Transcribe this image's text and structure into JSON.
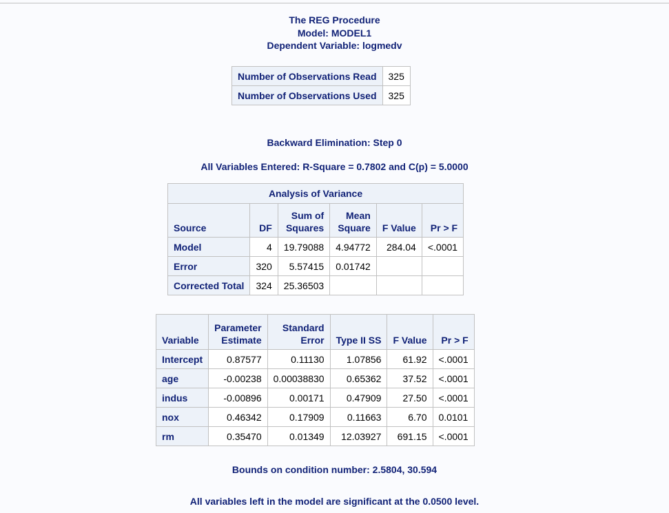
{
  "header": {
    "line1": "The REG Procedure",
    "line2": "Model: MODEL1",
    "line3": "Dependent Variable: logmedv"
  },
  "observations": {
    "rows": [
      {
        "label": "Number of Observations Read",
        "value": "325"
      },
      {
        "label": "Number of Observations Used",
        "value": "325"
      }
    ]
  },
  "step_title": "Backward Elimination: Step 0",
  "entered_summary": "All Variables Entered: R-Square = 0.7802 and C(p) = 5.0000",
  "anova": {
    "caption": "Analysis of Variance",
    "headers": {
      "source": "Source",
      "df": "DF",
      "ss_line1": "Sum of",
      "ss_line2": "Squares",
      "ms_line1": "Mean",
      "ms_line2": "Square",
      "f": "F Value",
      "p": "Pr > F"
    },
    "rows": [
      {
        "source": "Model",
        "df": "4",
        "ss": "19.79088",
        "ms": "4.94772",
        "f": "284.04",
        "p": "<.0001"
      },
      {
        "source": "Error",
        "df": "320",
        "ss": "5.57415",
        "ms": "0.01742",
        "f": "",
        "p": ""
      },
      {
        "source": "Corrected Total",
        "df": "324",
        "ss": "25.36503",
        "ms": "",
        "f": "",
        "p": ""
      }
    ]
  },
  "params": {
    "headers": {
      "variable": "Variable",
      "est_line1": "Parameter",
      "est_line2": "Estimate",
      "se_line1": "Standard",
      "se_line2": "Error",
      "ss": "Type II SS",
      "f": "F Value",
      "p": "Pr > F"
    },
    "rows": [
      {
        "variable": "Intercept",
        "est": "0.87577",
        "se": "0.11130",
        "ss": "1.07856",
        "f": "61.92",
        "p": "<.0001"
      },
      {
        "variable": "age",
        "est": "-0.00238",
        "se": "0.00038830",
        "ss": "0.65362",
        "f": "37.52",
        "p": "<.0001"
      },
      {
        "variable": "indus",
        "est": "-0.00896",
        "se": "0.00171",
        "ss": "0.47909",
        "f": "27.50",
        "p": "<.0001"
      },
      {
        "variable": "nox",
        "est": "0.46342",
        "se": "0.17909",
        "ss": "0.11663",
        "f": "6.70",
        "p": "0.0101"
      },
      {
        "variable": "rm",
        "est": "0.35470",
        "se": "0.01349",
        "ss": "12.03927",
        "f": "691.15",
        "p": "<.0001"
      }
    ]
  },
  "bounds_note": "Bounds on condition number: 2.5804, 30.594",
  "significance_note": "All variables left in the model are significant at the 0.0500 level."
}
